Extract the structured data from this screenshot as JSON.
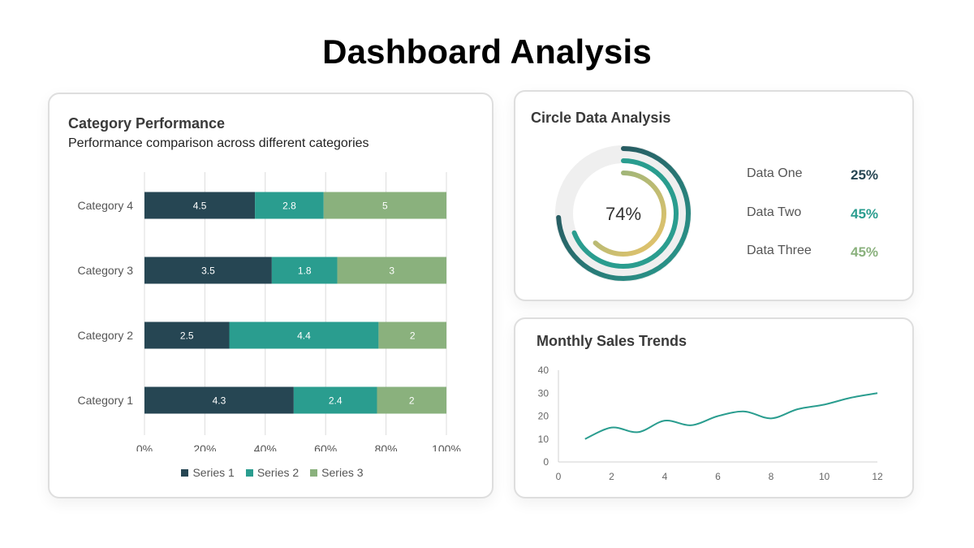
{
  "page": {
    "title": "Dashboard Analysis"
  },
  "category_card": {
    "title": "Category Performance",
    "subtitle": "Performance comparison across different categories"
  },
  "circle_card": {
    "title": "Circle Data Analysis",
    "center_label": "74%",
    "items": [
      {
        "label": "Data One",
        "value": "25%",
        "color": "#264653"
      },
      {
        "label": "Data Two",
        "value": "45%",
        "color": "#2a9d8f"
      },
      {
        "label": "Data Three",
        "value": "45%",
        "color": "#8ab17d"
      }
    ]
  },
  "monthly_card": {
    "title": "Monthly Sales Trends"
  },
  "colors": {
    "series1": "#264653",
    "series2": "#2a9d8f",
    "series3": "#8ab17d",
    "ring_inner": "#e9c46a",
    "track": "#efefef"
  },
  "chart_data": [
    {
      "type": "bar",
      "orientation": "horizontal",
      "stacked": "percent",
      "title": "Category Performance",
      "subtitle": "Performance comparison across different categories",
      "categories": [
        "Category 1",
        "Category 2",
        "Category 3",
        "Category 4"
      ],
      "series": [
        {
          "name": "Series 1",
          "values": [
            4.3,
            2.5,
            3.5,
            4.5
          ]
        },
        {
          "name": "Series 2",
          "values": [
            2.4,
            4.4,
            1.8,
            2.8
          ]
        },
        {
          "name": "Series 3",
          "values": [
            2,
            2,
            3,
            5
          ]
        }
      ],
      "x_ticks": [
        "0%",
        "20%",
        "40%",
        "60%",
        "80%",
        "100%"
      ],
      "grid": true,
      "legend": "bottom"
    },
    {
      "type": "pie",
      "variant": "concentric-rings",
      "title": "Circle Data Analysis",
      "center_label": "74%",
      "rings": [
        {
          "name": "Outer",
          "fraction": 0.74
        },
        {
          "name": "Middle",
          "fraction": 0.69
        },
        {
          "name": "Inner",
          "fraction": 0.62
        }
      ],
      "legend_values": [
        {
          "label": "Data One",
          "value": "25%"
        },
        {
          "label": "Data Two",
          "value": "45%"
        },
        {
          "label": "Data Three",
          "value": "45%"
        }
      ]
    },
    {
      "type": "line",
      "title": "Monthly Sales Trends",
      "x": [
        1,
        2,
        3,
        4,
        5,
        6,
        7,
        8,
        9,
        10,
        11,
        12
      ],
      "series": [
        {
          "values": [
            10,
            15,
            13,
            18,
            16,
            20,
            22,
            19,
            23,
            25,
            28,
            30
          ]
        }
      ],
      "xlim": [
        0,
        12
      ],
      "ylim": [
        0,
        40
      ],
      "x_ticks": [
        0,
        2,
        4,
        6,
        8,
        10,
        12
      ],
      "y_ticks": [
        0,
        10,
        20,
        30,
        40
      ],
      "grid": false
    }
  ]
}
